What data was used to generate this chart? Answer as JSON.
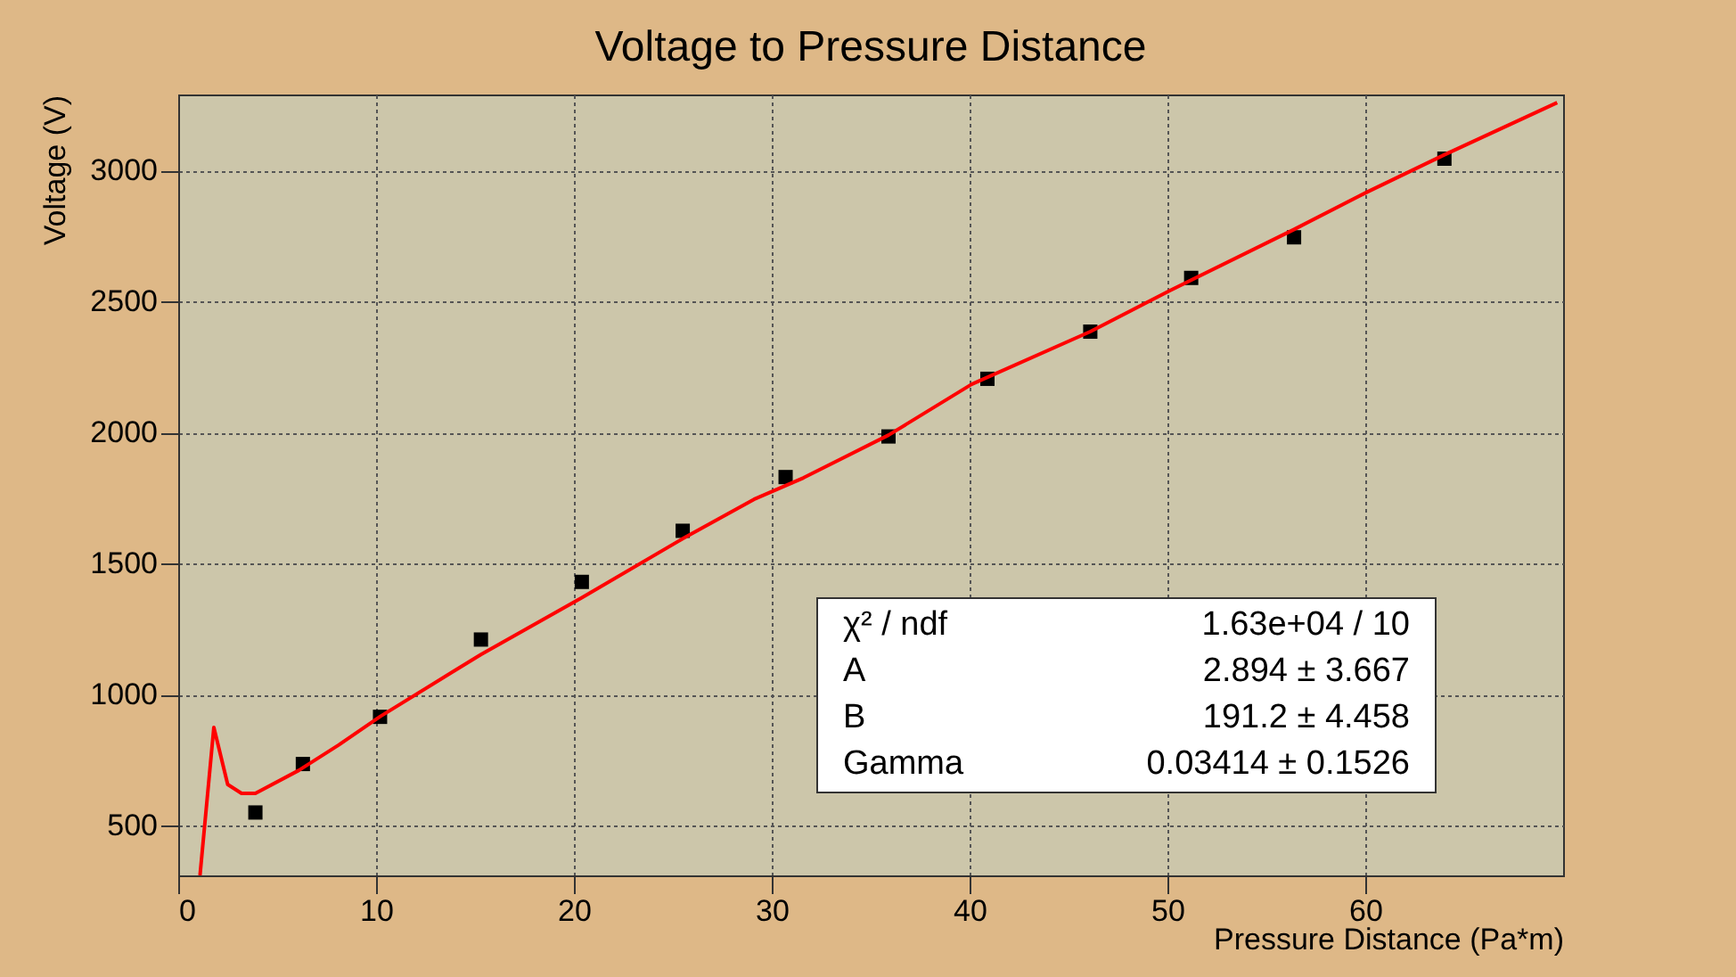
{
  "chart_data": {
    "type": "scatter",
    "title": "Voltage to Pressure Distance",
    "xlabel": "Pressure Distance (Pa*m)",
    "ylabel": "Voltage (V)",
    "x": [
      3.9,
      6.3,
      10.2,
      15.3,
      20.4,
      25.5,
      30.7,
      35.9,
      40.9,
      46.1,
      51.2,
      56.4,
      64.0
    ],
    "series": [
      {
        "color": "#000000",
        "marker": "square",
        "values": [
          550,
          735,
          915,
          1210,
          1430,
          1625,
          1830,
          1985,
          2205,
          2385,
          2590,
          2745,
          3045
        ]
      },
      {
        "type": "line",
        "color": "#ff0000",
        "x": [
          1.1,
          1.8,
          2.5,
          3.2,
          3.9,
          6.1,
          8.1,
          10.2,
          15.3,
          20.4,
          25.5,
          29.1,
          31.6,
          35.9,
          40.1,
          46.1,
          50.1,
          56.4,
          60.1,
          64.0,
          69.7
        ],
        "values": [
          310,
          875,
          657,
          623,
          623,
          711,
          807,
          916,
          1153,
          1370,
          1595,
          1745,
          1827,
          1990,
          2184,
          2385,
          2541,
          2775,
          2918,
          3060,
          3259
        ]
      }
    ],
    "xlim": [
      0,
      70
    ],
    "xticks": [
      0,
      10,
      20,
      30,
      40,
      50,
      60
    ],
    "ylim": [
      310,
      3290
    ],
    "yticks": [
      500,
      1000,
      1500,
      2000,
      2500,
      3000
    ],
    "grid": true,
    "annotations": [
      "χ² / ndf",
      "1.63e+04 / 10",
      "A",
      "2.894 ± 3.667",
      "B",
      "191.2 ± 4.458",
      "Gamma",
      "0.03414 ± 0.1526"
    ]
  }
}
